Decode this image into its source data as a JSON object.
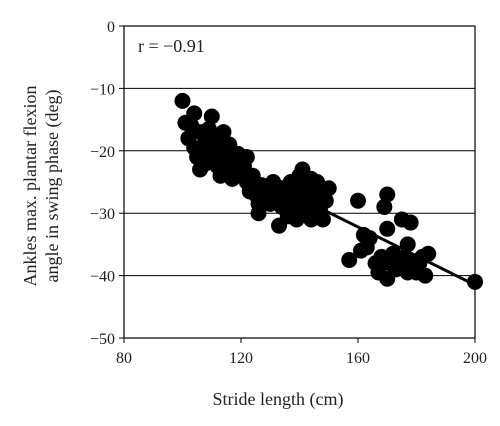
{
  "chart_data": {
    "type": "scatter",
    "title": "",
    "xlabel": "Stride length (cm)",
    "ylabel_line1": "Ankles max. plantar flexion",
    "ylabel_line2": "angle in swing phase (deg)",
    "annotation": "r = −0.91",
    "xlim": [
      80,
      200
    ],
    "ylim": [
      -50,
      0
    ],
    "xticks": [
      80,
      120,
      160,
      200
    ],
    "yticks": [
      0,
      -10,
      -20,
      -30,
      -40,
      -50
    ],
    "xtick_labels": [
      "80",
      "120",
      "160",
      "200"
    ],
    "ytick_labels": [
      "0",
      "−10",
      "−20",
      "−30",
      "−40",
      "−50"
    ],
    "grid": "horizontal",
    "marker_color": "#000000",
    "trend_line": {
      "x": [
        101,
        200
      ],
      "y": [
        -18.5,
        -41.5
      ]
    },
    "points": [
      [
        100,
        -12
      ],
      [
        101,
        -15.5
      ],
      [
        102,
        -18
      ],
      [
        103,
        -16
      ],
      [
        104,
        -14
      ],
      [
        104,
        -19.5
      ],
      [
        105,
        -21
      ],
      [
        106,
        -17
      ],
      [
        106,
        -23
      ],
      [
        107,
        -20
      ],
      [
        108,
        -18.5
      ],
      [
        108,
        -22
      ],
      [
        109,
        -16.5
      ],
      [
        110,
        -14.5
      ],
      [
        110,
        -21
      ],
      [
        111,
        -19
      ],
      [
        112,
        -22.5
      ],
      [
        112,
        -18
      ],
      [
        113,
        -24
      ],
      [
        113,
        -20
      ],
      [
        114,
        -21.5
      ],
      [
        114,
        -17
      ],
      [
        115,
        -23
      ],
      [
        116,
        -19
      ],
      [
        117,
        -21
      ],
      [
        117,
        -24.5
      ],
      [
        118,
        -22
      ],
      [
        119,
        -20.5
      ],
      [
        120,
        -23.5
      ],
      [
        121,
        -22.5
      ],
      [
        122,
        -25
      ],
      [
        122,
        -21
      ],
      [
        123,
        -26.5
      ],
      [
        124,
        -24
      ],
      [
        125,
        -27
      ],
      [
        126,
        -28.5
      ],
      [
        126,
        -30
      ],
      [
        127,
        -25.5
      ],
      [
        128,
        -27.5
      ],
      [
        129,
        -26
      ],
      [
        130,
        -28.5
      ],
      [
        131,
        -25
      ],
      [
        132,
        -27
      ],
      [
        133,
        -32
      ],
      [
        134,
        -29
      ],
      [
        134,
        -26
      ],
      [
        135,
        -28
      ],
      [
        136,
        -30.5
      ],
      [
        137,
        -27.5
      ],
      [
        137,
        -25
      ],
      [
        138,
        -29
      ],
      [
        139,
        -31
      ],
      [
        139,
        -26.5
      ],
      [
        140,
        -28
      ],
      [
        140,
        -24
      ],
      [
        141,
        -30
      ],
      [
        141,
        -23
      ],
      [
        142,
        -27
      ],
      [
        142,
        -25.5
      ],
      [
        143,
        -29
      ],
      [
        143,
        -26
      ],
      [
        144,
        -31
      ],
      [
        144,
        -24.5
      ],
      [
        145,
        -28
      ],
      [
        145,
        -30
      ],
      [
        146,
        -27
      ],
      [
        146,
        -25
      ],
      [
        147,
        -29.5
      ],
      [
        147,
        -26.5
      ],
      [
        148,
        -31
      ],
      [
        149,
        -28
      ],
      [
        150,
        -26
      ],
      [
        157,
        -37.5
      ],
      [
        160,
        -28
      ],
      [
        161,
        -36
      ],
      [
        162,
        -33.5
      ],
      [
        163,
        -35.5
      ],
      [
        164,
        -34
      ],
      [
        166,
        -38
      ],
      [
        167,
        -39.5
      ],
      [
        168,
        -37
      ],
      [
        169,
        -29
      ],
      [
        170,
        -27
      ],
      [
        170,
        -32.5
      ],
      [
        170,
        -40.5
      ],
      [
        171,
        -38
      ],
      [
        172,
        -36.5
      ],
      [
        173,
        -39
      ],
      [
        174,
        -38
      ],
      [
        175,
        -31
      ],
      [
        176,
        -37
      ],
      [
        177,
        -35
      ],
      [
        177,
        -39.5
      ],
      [
        178,
        -31.5
      ],
      [
        178,
        -38
      ],
      [
        180,
        -39.5
      ],
      [
        181,
        -38
      ],
      [
        182,
        -37
      ],
      [
        183,
        -40
      ],
      [
        184,
        -36.5
      ],
      [
        200,
        -41
      ]
    ]
  }
}
